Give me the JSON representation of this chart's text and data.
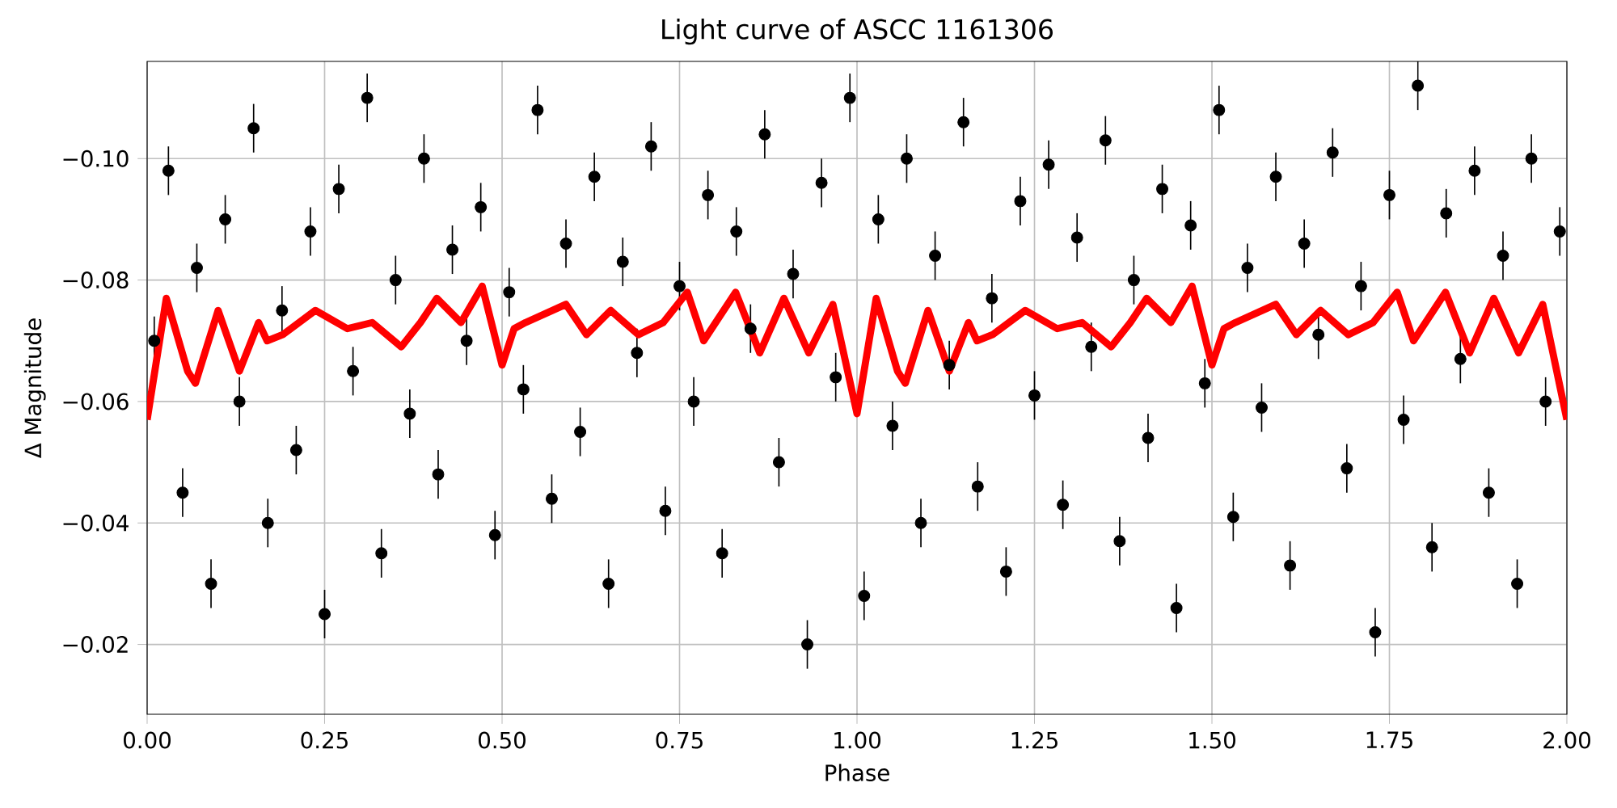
{
  "chart_data": {
    "type": "scatter",
    "title": "Light curve of ASCC 1161306",
    "xlabel": "Phase",
    "ylabel": "Δ Magnitude",
    "xlim": [
      0,
      2
    ],
    "ylim": [
      -0.0085,
      -0.116
    ],
    "xticks": [
      {
        "value": 0,
        "label": "0.00"
      },
      {
        "value": 0.25,
        "label": "0.25"
      },
      {
        "value": 0.5,
        "label": "0.50"
      },
      {
        "value": 0.75,
        "label": "0.75"
      },
      {
        "value": 1,
        "label": "1.00"
      },
      {
        "value": 1.25,
        "label": "1.25"
      },
      {
        "value": 1.5,
        "label": "1.50"
      },
      {
        "value": 1.75,
        "label": "1.75"
      },
      {
        "value": 2,
        "label": "2.00"
      }
    ],
    "yticks": [
      {
        "value": -0.1,
        "label": "−0.10"
      },
      {
        "value": -0.08,
        "label": "−0.08"
      },
      {
        "value": -0.06,
        "label": "−0.06"
      },
      {
        "value": -0.04,
        "label": "−0.04"
      },
      {
        "value": -0.02,
        "label": "−0.02"
      }
    ],
    "grid": true,
    "series": [
      {
        "color": "#000000",
        "x": [
          0.01,
          0.03,
          0.05,
          0.07,
          0.09,
          0.11,
          0.13,
          0.15,
          0.17,
          0.19,
          0.21,
          0.23,
          0.25,
          0.27,
          0.29,
          0.31,
          0.33,
          0.35,
          0.37,
          0.39,
          0.41,
          0.43,
          0.45,
          0.47,
          0.49,
          0.51,
          0.53,
          0.55,
          0.57,
          0.59,
          0.61,
          0.63,
          0.65,
          0.67,
          0.69,
          0.71,
          0.73,
          0.75,
          0.77,
          0.79,
          0.81,
          0.83,
          0.85,
          0.87,
          0.89,
          0.91,
          0.93,
          0.95,
          0.97,
          0.99,
          1.01,
          1.03,
          1.05,
          1.07,
          1.09,
          1.11,
          1.13,
          1.15,
          1.17,
          1.19,
          1.21,
          1.23,
          1.25,
          1.27,
          1.29,
          1.31,
          1.33,
          1.35,
          1.37,
          1.39,
          1.41,
          1.43,
          1.45,
          1.47,
          1.49,
          1.51,
          1.53,
          1.55,
          1.57,
          1.59,
          1.61,
          1.63,
          1.65,
          1.67,
          1.69,
          1.71,
          1.73,
          1.75,
          1.77,
          1.79,
          1.81,
          1.83,
          1.85,
          1.87,
          1.89,
          1.91,
          1.93,
          1.95,
          1.97,
          1.99
        ],
        "values": [
          -0.07,
          -0.098,
          -0.045,
          -0.082,
          -0.03,
          -0.09,
          -0.06,
          -0.105,
          -0.04,
          -0.075,
          -0.052,
          -0.088,
          -0.025,
          -0.095,
          -0.065,
          -0.11,
          -0.035,
          -0.08,
          -0.058,
          -0.1,
          -0.048,
          -0.085,
          -0.07,
          -0.092,
          -0.038,
          -0.078,
          -0.062,
          -0.108,
          -0.044,
          -0.086,
          -0.055,
          -0.097,
          -0.03,
          -0.083,
          -0.068,
          -0.102,
          -0.042,
          -0.079,
          -0.06,
          -0.094,
          -0.035,
          -0.088,
          -0.072,
          -0.104,
          -0.05,
          -0.081,
          -0.02,
          -0.096,
          -0.064,
          -0.11,
          -0.028,
          -0.09,
          -0.056,
          -0.1,
          -0.04,
          -0.084,
          -0.066,
          -0.106,
          -0.046,
          -0.077,
          -0.032,
          -0.093,
          -0.061,
          -0.099,
          -0.043,
          -0.087,
          -0.069,
          -0.103,
          -0.037,
          -0.08,
          -0.054,
          -0.095,
          -0.026,
          -0.089,
          -0.063,
          -0.108,
          -0.041,
          -0.082,
          -0.059,
          -0.097,
          -0.033,
          -0.086,
          -0.071,
          -0.101,
          -0.049,
          -0.079,
          -0.022,
          -0.094,
          -0.057,
          -0.112,
          -0.036,
          -0.091,
          -0.067,
          -0.098,
          -0.045,
          -0.084,
          -0.03,
          -0.1,
          -0.06,
          -0.088
        ],
        "errors": [
          0.004,
          0.004,
          0.004,
          0.004,
          0.004,
          0.004,
          0.004,
          0.004,
          0.004,
          0.004,
          0.004,
          0.004,
          0.004,
          0.004,
          0.004,
          0.004,
          0.004,
          0.004,
          0.004,
          0.004,
          0.004,
          0.004,
          0.004,
          0.004,
          0.004,
          0.004,
          0.004,
          0.004,
          0.004,
          0.004,
          0.004,
          0.004,
          0.004,
          0.004,
          0.004,
          0.004,
          0.004,
          0.004,
          0.004,
          0.004,
          0.004,
          0.004,
          0.004,
          0.004,
          0.004,
          0.004,
          0.004,
          0.004,
          0.004,
          0.004,
          0.004,
          0.004,
          0.004,
          0.004,
          0.004,
          0.004,
          0.004,
          0.004,
          0.004,
          0.004,
          0.004,
          0.004,
          0.004,
          0.004,
          0.004,
          0.004,
          0.004,
          0.004,
          0.004,
          0.004,
          0.004,
          0.004,
          0.004,
          0.004,
          0.004,
          0.004,
          0.004,
          0.004,
          0.004,
          0.004,
          0.004,
          0.004,
          0.004,
          0.004,
          0.004,
          0.004,
          0.004,
          0.004,
          0.004,
          0.004,
          0.004,
          0.004,
          0.004,
          0.004,
          0.004,
          0.004,
          0.004,
          0.004,
          0.004,
          0.004
        ]
      },
      {
        "type": "line",
        "color": "#ff0000",
        "line_style": "solid",
        "x": [
          0,
          0.027,
          0.057,
          0.068,
          0.1,
          0.13,
          0.157,
          0.169,
          0.191,
          0.237,
          0.282,
          0.317,
          0.358,
          0.385,
          0.408,
          0.442,
          0.472,
          0.5,
          0.517,
          0.533,
          0.59,
          0.619,
          0.653,
          0.692,
          0.727,
          0.761,
          0.784,
          0.829,
          0.863,
          0.897,
          0.932,
          0.966,
          1,
          1.027,
          1.057,
          1.068,
          1.1,
          1.13,
          1.157,
          1.169,
          1.191,
          1.237,
          1.282,
          1.317,
          1.358,
          1.385,
          1.408,
          1.442,
          1.472,
          1.5,
          1.517,
          1.533,
          1.59,
          1.619,
          1.653,
          1.692,
          1.727,
          1.761,
          1.784,
          1.829,
          1.863,
          1.897,
          1.932,
          1.966,
          2
        ],
        "values": [
          -0.057,
          -0.077,
          -0.065,
          -0.063,
          -0.075,
          -0.065,
          -0.073,
          -0.07,
          -0.071,
          -0.075,
          -0.072,
          -0.073,
          -0.069,
          -0.073,
          -0.077,
          -0.073,
          -0.079,
          -0.066,
          -0.072,
          -0.073,
          -0.076,
          -0.071,
          -0.075,
          -0.071,
          -0.073,
          -0.078,
          -0.07,
          -0.078,
          -0.068,
          -0.077,
          -0.068,
          -0.076,
          -0.058,
          -0.077,
          -0.065,
          -0.063,
          -0.075,
          -0.065,
          -0.073,
          -0.07,
          -0.071,
          -0.075,
          -0.072,
          -0.073,
          -0.069,
          -0.073,
          -0.077,
          -0.073,
          -0.079,
          -0.066,
          -0.072,
          -0.073,
          -0.076,
          -0.071,
          -0.075,
          -0.071,
          -0.073,
          -0.078,
          -0.07,
          -0.078,
          -0.068,
          -0.077,
          -0.068,
          -0.076,
          -0.057
        ]
      }
    ]
  }
}
